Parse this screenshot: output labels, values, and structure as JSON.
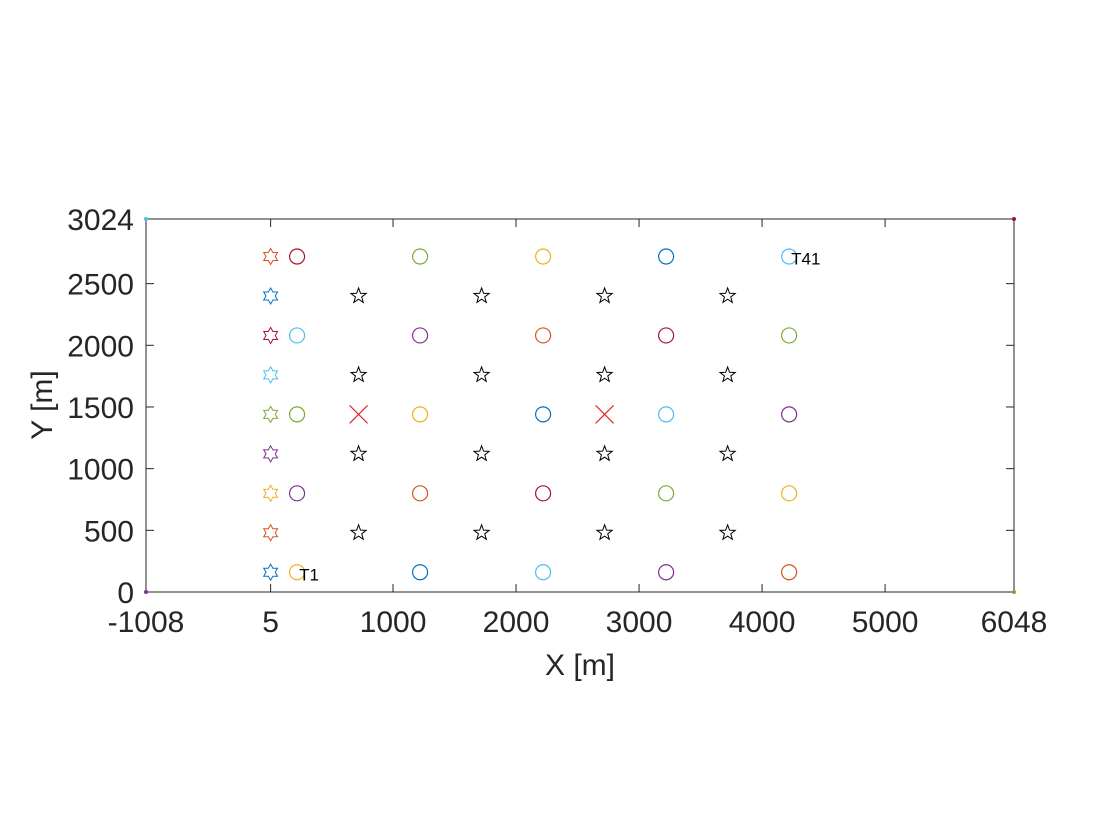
{
  "chart_data": {
    "type": "scatter",
    "title": "",
    "xlabel": "X [m]",
    "ylabel": "Y [m]",
    "xlim": [
      -1008,
      6048
    ],
    "ylim": [
      0,
      3024
    ],
    "x_tick_values": [
      -1008,
      5,
      1000,
      2000,
      3000,
      4000,
      5000,
      6048
    ],
    "x_tick_labels": [
      "-1008",
      "5",
      "1000",
      "2000",
      "3000",
      "4000",
      "5000",
      "6048"
    ],
    "y_tick_values": [
      0,
      500,
      1000,
      1500,
      2000,
      2500,
      3024
    ],
    "y_tick_labels": [
      "0",
      "500",
      "1000",
      "1500",
      "2000",
      "2500",
      "3024"
    ],
    "grid": false,
    "series": [
      {
        "marker": "circle",
        "points": [
          {
            "x": 220,
            "y": 160,
            "color": "#EDB120"
          },
          {
            "x": 1220,
            "y": 160,
            "color": "#0072BD"
          },
          {
            "x": 2220,
            "y": 160,
            "color": "#4DBEEE"
          },
          {
            "x": 3220,
            "y": 160,
            "color": "#7E2F8E"
          },
          {
            "x": 4220,
            "y": 160,
            "color": "#D95319"
          },
          {
            "x": 220,
            "y": 800,
            "color": "#7E2F8E"
          },
          {
            "x": 1220,
            "y": 800,
            "color": "#D95319"
          },
          {
            "x": 2220,
            "y": 800,
            "color": "#A2142F"
          },
          {
            "x": 3220,
            "y": 800,
            "color": "#77AC30"
          },
          {
            "x": 4220,
            "y": 800,
            "color": "#EDB120"
          },
          {
            "x": 220,
            "y": 1440,
            "color": "#77AC30"
          },
          {
            "x": 1220,
            "y": 1440,
            "color": "#EDB120"
          },
          {
            "x": 2220,
            "y": 1440,
            "color": "#0072BD"
          },
          {
            "x": 3220,
            "y": 1440,
            "color": "#4DBEEE"
          },
          {
            "x": 4220,
            "y": 1440,
            "color": "#7E2F8E"
          },
          {
            "x": 220,
            "y": 2080,
            "color": "#4DBEEE"
          },
          {
            "x": 1220,
            "y": 2080,
            "color": "#7E2F8E"
          },
          {
            "x": 2220,
            "y": 2080,
            "color": "#D95319"
          },
          {
            "x": 3220,
            "y": 2080,
            "color": "#A2142F"
          },
          {
            "x": 4220,
            "y": 2080,
            "color": "#77AC30"
          },
          {
            "x": 220,
            "y": 2720,
            "color": "#A2142F"
          },
          {
            "x": 1220,
            "y": 2720,
            "color": "#77AC30"
          },
          {
            "x": 2220,
            "y": 2720,
            "color": "#EDB120"
          },
          {
            "x": 3220,
            "y": 2720,
            "color": "#0072BD"
          },
          {
            "x": 4220,
            "y": 2720,
            "color": "#4DBEEE"
          }
        ]
      },
      {
        "marker": "pentagram",
        "points": [
          {
            "x": 720,
            "y": 480
          },
          {
            "x": 1720,
            "y": 480
          },
          {
            "x": 2720,
            "y": 480
          },
          {
            "x": 3720,
            "y": 480
          },
          {
            "x": 720,
            "y": 1120
          },
          {
            "x": 1720,
            "y": 1120
          },
          {
            "x": 2720,
            "y": 1120
          },
          {
            "x": 3720,
            "y": 1120
          },
          {
            "x": 720,
            "y": 1760
          },
          {
            "x": 1720,
            "y": 1760
          },
          {
            "x": 2720,
            "y": 1760
          },
          {
            "x": 3720,
            "y": 1760
          },
          {
            "x": 720,
            "y": 2400
          },
          {
            "x": 1720,
            "y": 2400
          },
          {
            "x": 2720,
            "y": 2400
          },
          {
            "x": 3720,
            "y": 2400
          }
        ],
        "color": "#000000"
      },
      {
        "marker": "hexagram",
        "points": [
          {
            "x": 5,
            "y": 160,
            "color": "#0072BD"
          },
          {
            "x": 5,
            "y": 480,
            "color": "#D95319"
          },
          {
            "x": 5,
            "y": 800,
            "color": "#EDB120"
          },
          {
            "x": 5,
            "y": 1120,
            "color": "#7E2F8E"
          },
          {
            "x": 5,
            "y": 1440,
            "color": "#77AC30"
          },
          {
            "x": 5,
            "y": 1760,
            "color": "#4DBEEE"
          },
          {
            "x": 5,
            "y": 2080,
            "color": "#A2142F"
          },
          {
            "x": 5,
            "y": 2400,
            "color": "#0072BD"
          },
          {
            "x": 5,
            "y": 2720,
            "color": "#D95319"
          }
        ]
      },
      {
        "marker": "x",
        "points": [
          {
            "x": 720,
            "y": 1440
          },
          {
            "x": 2720,
            "y": 1440
          }
        ],
        "color": "#E31A1C"
      },
      {
        "marker": "dot",
        "points": [
          {
            "x": -1008,
            "y": 3024,
            "color": "#4DBEEE"
          },
          {
            "x": 6048,
            "y": 3024,
            "color": "#A2142F"
          },
          {
            "x": -1008,
            "y": 0,
            "color": "#7E2F8E"
          },
          {
            "x": 6048,
            "y": 0,
            "color": "#77AC30"
          }
        ]
      }
    ],
    "annotations": [
      {
        "text": "T1",
        "x": 220,
        "y": 160
      },
      {
        "text": "T41",
        "x": 4220,
        "y": 2720
      }
    ]
  }
}
